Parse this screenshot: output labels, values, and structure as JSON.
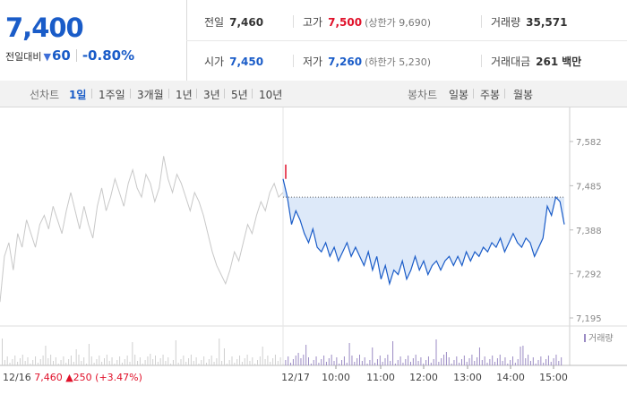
{
  "quote": {
    "price": "7,400",
    "change_label": "전일대비",
    "change_icon": "down-triangle-icon",
    "change_amount": "60",
    "change_pct": "-0.80%",
    "prev_close": {
      "label": "전일",
      "value": "7,460"
    },
    "high": {
      "label": "고가",
      "value": "7,500",
      "limit_label": "(상한가 9,690)"
    },
    "volume": {
      "label": "거래량",
      "value": "35,571"
    },
    "open": {
      "label": "시가",
      "value": "7,450"
    },
    "low": {
      "label": "저가",
      "value": "7,260",
      "limit_label": "(하한가 5,230)"
    },
    "amount": {
      "label": "거래대금",
      "value": "261",
      "unit": "백만"
    }
  },
  "tabs": {
    "line_label": "선차트",
    "line_items": [
      "1일",
      "1주일",
      "3개월",
      "1년",
      "3년",
      "5년",
      "10년"
    ],
    "line_active": 0,
    "candle_label": "봉차트",
    "candle_items": [
      "일봉",
      "주봉",
      "월봉"
    ]
  },
  "colors": {
    "up": "#e0112a",
    "down": "#1a5cc8",
    "prev_line": "#c8c8c8",
    "fill": "#dde9f9",
    "volume_bar": "#9b8bc4"
  },
  "chart_data": {
    "type": "line",
    "y_ticks": [
      "7,582",
      "7,485",
      "7,388",
      "7,292",
      "7,195"
    ],
    "ylim": [
      7195,
      7582
    ],
    "x_ticks": [
      "10:00",
      "11:00",
      "12:00",
      "13:00",
      "14:00",
      "15:00"
    ],
    "day_label": "12/17",
    "prev_day_summary": {
      "date": "12/16",
      "close": "7,460",
      "change": "▲250",
      "pct": "(+3.47%)"
    },
    "volume_legend": "거래량",
    "prev_close": 7460,
    "prev_day_series": [
      7230,
      7330,
      7360,
      7300,
      7380,
      7350,
      7410,
      7380,
      7350,
      7400,
      7420,
      7390,
      7440,
      7410,
      7380,
      7430,
      7470,
      7430,
      7390,
      7440,
      7400,
      7370,
      7440,
      7480,
      7430,
      7460,
      7500,
      7470,
      7440,
      7490,
      7520,
      7480,
      7460,
      7510,
      7490,
      7450,
      7480,
      7550,
      7500,
      7470,
      7510,
      7490,
      7460,
      7430,
      7470,
      7450,
      7420,
      7380,
      7340,
      7310,
      7290,
      7270,
      7300,
      7340,
      7320,
      7360,
      7400,
      7380,
      7420,
      7450,
      7430,
      7470,
      7490,
      7460,
      7470
    ],
    "today_series": [
      7500,
      7460,
      7400,
      7430,
      7410,
      7380,
      7360,
      7390,
      7350,
      7340,
      7360,
      7330,
      7350,
      7320,
      7340,
      7360,
      7330,
      7350,
      7330,
      7310,
      7340,
      7300,
      7330,
      7280,
      7310,
      7270,
      7300,
      7290,
      7320,
      7280,
      7300,
      7330,
      7300,
      7320,
      7290,
      7310,
      7320,
      7300,
      7320,
      7330,
      7310,
      7330,
      7310,
      7340,
      7320,
      7340,
      7330,
      7350,
      7340,
      7360,
      7350,
      7370,
      7340,
      7360,
      7380,
      7360,
      7350,
      7370,
      7360,
      7330,
      7350,
      7370,
      7440,
      7420,
      7460,
      7450,
      7400
    ]
  }
}
